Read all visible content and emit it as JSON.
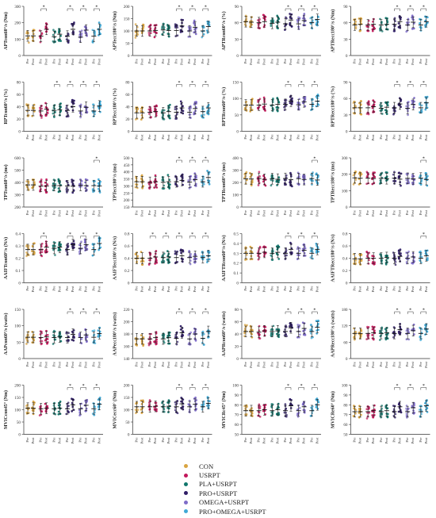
{
  "groups": [
    {
      "name": "CON",
      "color": "#d9a441"
    },
    {
      "name": "USRPT",
      "color": "#c2185b"
    },
    {
      "name": "PLA+USRPT",
      "color": "#11766c"
    },
    {
      "name": "PRO+USRPT",
      "color": "#2f1d66"
    },
    {
      "name": "OMEGA+USRPT",
      "color": "#7e6cc8"
    },
    {
      "name": "PRO+OMEGA+USRPT",
      "color": "#3fa9d6"
    }
  ],
  "time_labels": [
    "Pre",
    "Post"
  ],
  "significance_marker": "*",
  "chart_data": [
    {
      "type": "scatter",
      "ylabel": "APTcon60°/s (Nm)",
      "ylim": [
        0,
        300
      ],
      "yticks": [
        0,
        100,
        200,
        300
      ],
      "values": [
        120,
        120,
        118,
        160,
        115,
        130,
        118,
        160,
        112,
        155,
        118,
        160
      ],
      "sig": [
        1,
        3,
        4,
        5
      ]
    },
    {
      "type": "scatter",
      "ylabel": "APTecc180°/s (Nm)",
      "ylim": [
        0,
        200
      ],
      "yticks": [
        0,
        50,
        100,
        150,
        200
      ],
      "values": [
        100,
        100,
        100,
        102,
        104,
        102,
        102,
        120,
        100,
        115,
        100,
        118
      ],
      "sig": [
        3,
        4,
        5
      ]
    },
    {
      "type": "scatter",
      "ylabel": "APTRcon60°/s (%)",
      "ylim": [
        0,
        90
      ],
      "yticks": [
        0,
        30,
        60,
        90
      ],
      "values": [
        62,
        61,
        60,
        62,
        59,
        61,
        58,
        65,
        58,
        64,
        60,
        66
      ],
      "sig": [
        3,
        4,
        5
      ]
    },
    {
      "type": "scatter",
      "ylabel": "APTRecc180°/s (Nm)",
      "ylim": [
        0,
        90
      ],
      "yticks": [
        0,
        30,
        60,
        90
      ],
      "values": [
        56,
        57,
        56,
        57,
        56,
        57,
        57,
        62,
        56,
        61,
        56,
        62
      ],
      "sig": [
        3,
        4,
        5
      ]
    },
    {
      "type": "scatter",
      "ylabel": "RPTcon60°/s (%)",
      "ylim": [
        0,
        80
      ],
      "yticks": [
        0,
        20,
        40,
        60,
        80
      ],
      "values": [
        34,
        34,
        33,
        36,
        34,
        35,
        34,
        40,
        33,
        39,
        33,
        41
      ],
      "sig": [
        2,
        3,
        4,
        5
      ]
    },
    {
      "type": "scatter",
      "ylabel": "RPTecc180°/s (%)",
      "ylim": [
        0,
        80
      ],
      "yticks": [
        0,
        20,
        40,
        60,
        80
      ],
      "values": [
        30,
        30,
        31,
        32,
        30,
        32,
        31,
        38,
        31,
        37,
        32,
        38
      ],
      "sig": [
        3,
        4,
        5
      ]
    },
    {
      "type": "scatter",
      "ylabel": "RPTRcon60°/s (%)",
      "ylim": [
        0,
        150
      ],
      "yticks": [
        0,
        50,
        100,
        150
      ],
      "values": [
        80,
        80,
        80,
        83,
        80,
        82,
        82,
        92,
        81,
        90,
        82,
        92
      ],
      "sig": [
        3,
        4,
        5
      ]
    },
    {
      "type": "scatter",
      "ylabel": "RPTRecc180°/s (%)",
      "ylim": [
        0,
        90
      ],
      "yticks": [
        0,
        30,
        60,
        90
      ],
      "values": [
        43,
        43,
        43,
        45,
        42,
        44,
        43,
        50,
        42,
        49,
        43,
        52
      ],
      "sig": [
        3,
        4,
        5
      ]
    },
    {
      "type": "scatter",
      "ylabel": "TPTcon60°/s (ms)",
      "ylim": [
        200,
        600
      ],
      "yticks": [
        200,
        300,
        400,
        500,
        600
      ],
      "values": [
        380,
        380,
        370,
        372,
        375,
        374,
        372,
        370,
        376,
        374,
        374,
        372
      ],
      "sig": [
        5
      ]
    },
    {
      "type": "scatter",
      "ylabel": "TPTecc180°/s (ms)",
      "ylim": [
        150,
        500
      ],
      "yticks": [
        150,
        200,
        250,
        300,
        350,
        400,
        450,
        500
      ],
      "values": [
        330,
        330,
        325,
        330,
        326,
        330,
        330,
        340,
        328,
        345,
        330,
        360
      ],
      "sig": [
        3,
        4,
        5
      ]
    },
    {
      "type": "scatter",
      "ylabel": "TPTRcon60°/s (ms)",
      "ylim": [
        0,
        400
      ],
      "yticks": [
        0,
        100,
        200,
        300,
        400
      ],
      "values": [
        230,
        228,
        232,
        225,
        230,
        226,
        232,
        222,
        231,
        224,
        232,
        220
      ],
      "sig": [
        5
      ]
    },
    {
      "type": "scatter",
      "ylabel": "TPTRecc180°/s (ms)",
      "ylim": [
        0,
        300
      ],
      "yticks": [
        0,
        100,
        200,
        300
      ],
      "values": [
        178,
        176,
        176,
        174,
        175,
        173,
        176,
        170,
        175,
        172,
        176,
        168
      ],
      "sig": [
        5
      ]
    },
    {
      "type": "scatter",
      "ylabel": "AAIFTcon60°/s (N/s)",
      "ylim": [
        0,
        0.4
      ],
      "yticks": [
        0,
        0.1,
        0.2,
        0.3,
        0.4
      ],
      "values": [
        0.27,
        0.27,
        0.27,
        0.29,
        0.28,
        0.29,
        0.27,
        0.31,
        0.28,
        0.31,
        0.27,
        0.32
      ],
      "sig": [
        1,
        3,
        4,
        5
      ]
    },
    {
      "type": "scatter",
      "ylabel": "AAIFTecc180°/s (N/s)",
      "ylim": [
        0,
        0.8
      ],
      "yticks": [
        0,
        0.2,
        0.4,
        0.6,
        0.8
      ],
      "values": [
        0.4,
        0.4,
        0.4,
        0.42,
        0.41,
        0.42,
        0.41,
        0.44,
        0.41,
        0.43,
        0.41,
        0.44
      ],
      "sig": [
        1,
        2,
        3,
        4,
        5
      ]
    },
    {
      "type": "scatter",
      "ylabel": "AAIFTRcon60°/s (N/s)",
      "ylim": [
        0,
        0.5
      ],
      "yticks": [
        0,
        0.1,
        0.2,
        0.3,
        0.4,
        0.5
      ],
      "values": [
        0.3,
        0.3,
        0.3,
        0.31,
        0.3,
        0.31,
        0.3,
        0.34,
        0.3,
        0.33,
        0.3,
        0.34
      ],
      "sig": [
        3,
        4,
        5
      ]
    },
    {
      "type": "scatter",
      "ylabel": "AAIFTRecc180°/s (N/s)",
      "ylim": [
        0,
        0.8
      ],
      "yticks": [
        0,
        0.2,
        0.4,
        0.6,
        0.8
      ],
      "values": [
        0.39,
        0.39,
        0.4,
        0.4,
        0.4,
        0.41,
        0.4,
        0.43,
        0.4,
        0.42,
        0.4,
        0.44
      ],
      "sig": [
        5
      ]
    },
    {
      "type": "scatter",
      "ylabel": "AAPcon60°/s (watts)",
      "ylim": [
        0,
        150
      ],
      "yticks": [
        0,
        50,
        100,
        150
      ],
      "values": [
        65,
        65,
        64,
        66,
        64,
        66,
        64,
        74,
        64,
        72,
        65,
        76
      ],
      "sig": [
        3,
        4,
        5
      ]
    },
    {
      "type": "scatter",
      "ylabel": "AAPecc180°/s (watts)",
      "ylim": [
        140,
        220
      ],
      "yticks": [
        140,
        160,
        180,
        200,
        220
      ],
      "values": [
        172,
        172,
        172,
        174,
        172,
        174,
        173,
        182,
        172,
        180,
        173,
        184
      ],
      "sig": [
        3,
        4,
        5
      ]
    },
    {
      "type": "scatter",
      "ylabel": "AAPRcon60°/s (watts)",
      "ylim": [
        0,
        80
      ],
      "yticks": [
        0,
        20,
        40,
        60,
        80
      ],
      "values": [
        44,
        44,
        43,
        45,
        44,
        45,
        44,
        50,
        44,
        49,
        44,
        51
      ],
      "sig": [
        3,
        4,
        5
      ]
    },
    {
      "type": "scatter",
      "ylabel": "AAPRecc180°/s (watts)",
      "ylim": [
        0,
        180
      ],
      "yticks": [
        0,
        60,
        120,
        180
      ],
      "values": [
        92,
        92,
        92,
        94,
        92,
        94,
        92,
        106,
        92,
        102,
        92,
        108
      ],
      "sig": [
        3,
        4,
        5
      ]
    },
    {
      "type": "scatter",
      "ylabel": "MVICcon45° (Nm)",
      "ylim": [
        0,
        200
      ],
      "yticks": [
        0,
        50,
        100,
        150,
        200
      ],
      "values": [
        106,
        106,
        104,
        106,
        104,
        106,
        104,
        120,
        104,
        118,
        104,
        122
      ],
      "sig": [
        3,
        4,
        5
      ]
    },
    {
      "type": "scatter",
      "ylabel": "MVICecc60° (Nm)",
      "ylim": [
        0,
        200
      ],
      "yticks": [
        0,
        50,
        100,
        150,
        200
      ],
      "values": [
        112,
        112,
        112,
        114,
        112,
        114,
        112,
        124,
        112,
        122,
        112,
        126
      ],
      "sig": [
        3,
        4,
        5
      ]
    },
    {
      "type": "scatter",
      "ylabel": "MVICRc45° (Nm)",
      "ylim": [
        50,
        100
      ],
      "yticks": [
        50,
        60,
        70,
        80,
        90,
        100
      ],
      "values": [
        74,
        74,
        74,
        75,
        74,
        75,
        74,
        79,
        74,
        78,
        74,
        80
      ],
      "sig": [
        3,
        4,
        5
      ]
    },
    {
      "type": "scatter",
      "ylabel": "MVICRe60° (Nm)",
      "ylim": [
        50,
        100
      ],
      "yticks": [
        50,
        60,
        70,
        80,
        90,
        100
      ],
      "values": [
        73,
        73,
        73,
        74,
        73,
        74,
        73,
        78,
        73,
        77,
        73,
        79
      ],
      "sig": [
        3,
        4,
        5
      ]
    }
  ]
}
